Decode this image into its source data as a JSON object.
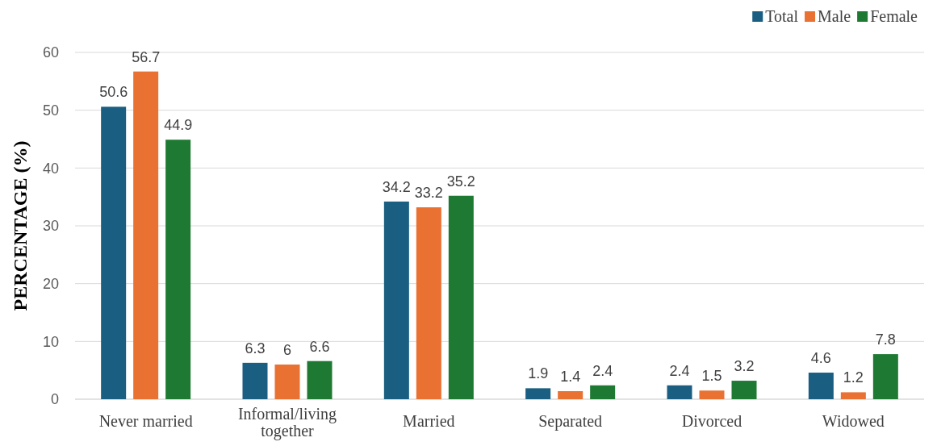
{
  "chart_data": {
    "type": "bar",
    "ylabel": "PERCENTAGE (%)",
    "categories": [
      "Never married",
      "Informal/living together",
      "Married",
      "Separated",
      "Divorced",
      "Widowed"
    ],
    "series": [
      {
        "name": "Total",
        "color": "#1a5e82",
        "values": [
          50.6,
          6.3,
          34.2,
          1.9,
          2.4,
          4.6
        ]
      },
      {
        "name": "Male",
        "color": "#e97132",
        "values": [
          56.7,
          6,
          33.2,
          1.4,
          1.5,
          1.2
        ]
      },
      {
        "name": "Female",
        "color": "#1e7a32",
        "values": [
          44.9,
          6.6,
          35.2,
          2.4,
          3.2,
          7.8
        ]
      }
    ],
    "ylim": [
      0,
      60
    ],
    "yticks": [
      0,
      10,
      20,
      30,
      40,
      50,
      60
    ],
    "grid": "y",
    "legend": "top right",
    "data_labels": true
  }
}
